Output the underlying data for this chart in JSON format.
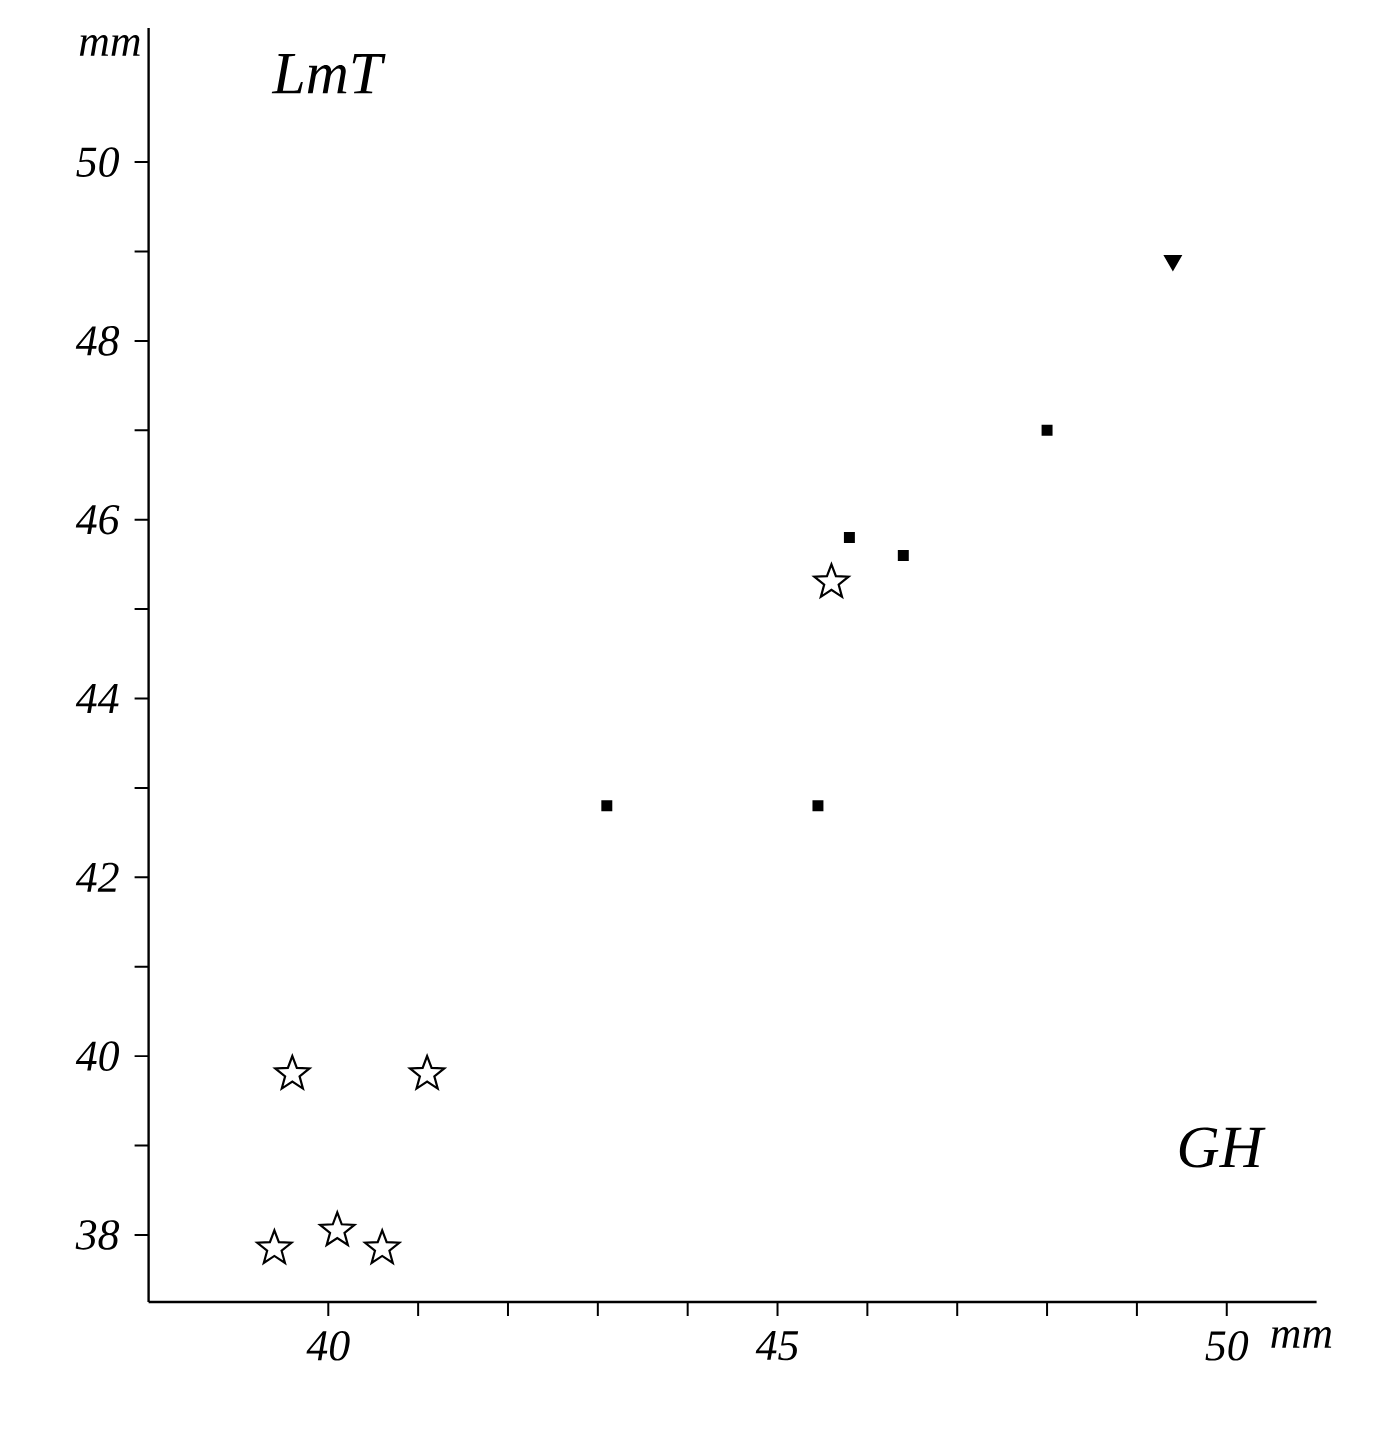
{
  "chart_data": {
    "type": "scatter",
    "xlabel": "GH",
    "ylabel": "LmT",
    "annotations": [
      "mm",
      "mm"
    ],
    "xlim": [
      38,
      51
    ],
    "ylim": [
      37.25,
      51.5
    ],
    "xticks": [
      40,
      45,
      50
    ],
    "yticks": [
      38,
      40,
      42,
      44,
      46,
      48,
      50
    ],
    "grid": false,
    "series": [
      {
        "color": "#000000",
        "marker": "triangle",
        "x": [
          49.4
        ],
        "values": [
          48.9
        ]
      },
      {
        "color": "#000000",
        "marker": "square",
        "x": [
          48.0,
          45.8,
          46.4,
          43.1,
          45.45
        ],
        "values": [
          47.0,
          45.8,
          45.6,
          42.8,
          42.8
        ]
      },
      {
        "color": "#000000",
        "marker": "star",
        "x": [
          45.6,
          39.6,
          41.1,
          39.4,
          40.1,
          40.6
        ],
        "values": [
          45.3,
          39.8,
          39.8,
          37.85,
          38.05,
          37.85
        ]
      }
    ]
  }
}
